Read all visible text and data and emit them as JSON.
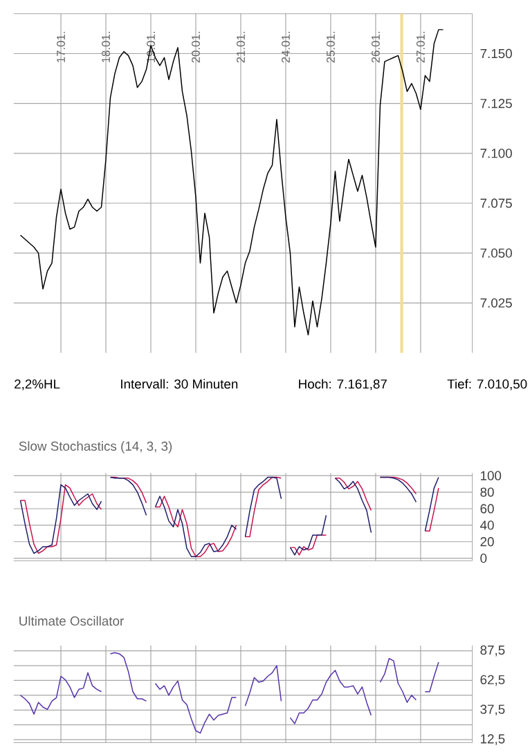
{
  "chart_data": [
    {
      "type": "line",
      "ylim": [
        7000,
        7170
      ],
      "grid": true,
      "categories": [
        null,
        null,
        null,
        null,
        null,
        null,
        null,
        null,
        null,
        null,
        "17.01.",
        null,
        null,
        null,
        null,
        null,
        null,
        null,
        null,
        null,
        "18.01.",
        null,
        null,
        null,
        null,
        null,
        null,
        null,
        null,
        null,
        "19.01.",
        null,
        null,
        null,
        null,
        null,
        null,
        null,
        null,
        null,
        "20.01.",
        null,
        null,
        null,
        null,
        null,
        null,
        null,
        null,
        null,
        "21.01.",
        null,
        null,
        null,
        null,
        null,
        null,
        null,
        null,
        null,
        "24.01.",
        null,
        null,
        null,
        null,
        null,
        null,
        null,
        null,
        null,
        "25.01.",
        null,
        null,
        null,
        null,
        null,
        null,
        null,
        null,
        null,
        "26.01.",
        null,
        null,
        null,
        null,
        null,
        null,
        null,
        null,
        null,
        "27.01.",
        null,
        null,
        null,
        null,
        null,
        null,
        null,
        null,
        null,
        null,
        null
      ],
      "yticks": [
        {
          "value": 7025,
          "label": "7.025"
        },
        {
          "value": 7050,
          "label": "7.050"
        },
        {
          "value": 7075,
          "label": "7.075"
        },
        {
          "value": 7100,
          "label": "7.100"
        },
        {
          "value": 7125,
          "label": "7.125"
        },
        {
          "value": 7150,
          "label": "7.150"
        }
      ],
      "annotations": [
        "2,2%HL",
        "Intervall: 30 Minuten",
        "Hoch: 7.161,87",
        "Tief: 7.010,50"
      ],
      "series": [
        {
          "color": "#000000",
          "values": [
            null,
            7059,
            7057,
            7055,
            7053,
            7050,
            7032,
            7041,
            7045,
            7068,
            7082,
            7070,
            7062,
            7063,
            7071,
            7073,
            7077,
            7073,
            7071,
            7073,
            7097,
            7128,
            7140,
            7148,
            7151,
            7149,
            7144,
            7133,
            7136,
            7142,
            7154,
            7148,
            7144,
            7148,
            7137,
            7146,
            7153,
            7131,
            7119,
            7101,
            7078,
            7045,
            7070,
            7058,
            7020,
            7030,
            7038,
            7041,
            7033,
            7025,
            7034,
            7045,
            7051,
            7063,
            7072,
            7082,
            7090,
            7094,
            7117,
            7091,
            7068,
            7050,
            7013,
            7033,
            7020,
            7009,
            7026,
            7013,
            7027,
            7045,
            7065,
            7091,
            7066,
            7083,
            7097,
            7089,
            7081,
            7089,
            7078,
            7065,
            7053,
            7124,
            7146,
            7147,
            7148,
            7149,
            7141,
            7131,
            7135,
            7130,
            7122,
            7139,
            7136,
            7155,
            7162,
            7162,
            null,
            null,
            null,
            null,
            null,
            null
          ]
        }
      ]
    },
    {
      "type": "line",
      "title": "Slow Stochastics (14, 3, 3)",
      "ylim": [
        -3,
        103
      ],
      "grid": true,
      "tick_labels": "y",
      "categories": [
        null,
        null,
        null,
        null,
        null,
        null,
        null,
        null,
        null,
        null,
        "17.01.",
        null,
        null,
        null,
        null,
        null,
        null,
        null,
        null,
        null,
        "18.01.",
        null,
        null,
        null,
        null,
        null,
        null,
        null,
        null,
        null,
        "19.01.",
        null,
        null,
        null,
        null,
        null,
        null,
        null,
        null,
        null,
        "20.01.",
        null,
        null,
        null,
        null,
        null,
        null,
        null,
        null,
        null,
        "21.01.",
        null,
        null,
        null,
        null,
        null,
        null,
        null,
        null,
        null,
        "24.01.",
        null,
        null,
        null,
        null,
        null,
        null,
        null,
        null,
        null,
        "25.01.",
        null,
        null,
        null,
        null,
        null,
        null,
        null,
        null,
        null,
        "26.01.",
        null,
        null,
        null,
        null,
        null,
        null,
        null,
        null,
        null,
        "27.01.",
        null,
        null,
        null,
        null,
        null,
        null,
        null,
        null,
        null,
        null,
        null
      ],
      "yticks": [
        0,
        20,
        40,
        60,
        80,
        100
      ],
      "series": [
        {
          "color": "#c8104a",
          "values": [
            null,
            70,
            70,
            42,
            17,
            6,
            9,
            14,
            14,
            16,
            48,
            89,
            85,
            74,
            64,
            70,
            74,
            78,
            66,
            59,
            null,
            98,
            98,
            97,
            97,
            97,
            94,
            89,
            80,
            67,
            null,
            62,
            62,
            75,
            62,
            45,
            38,
            59,
            42,
            12,
            2,
            2,
            7,
            16,
            18,
            8,
            9,
            16,
            26,
            40,
            null,
            26,
            26,
            57,
            83,
            89,
            93,
            98,
            98,
            97,
            null,
            13,
            13,
            4,
            14,
            10,
            12,
            28,
            28,
            28,
            null,
            97,
            97,
            92,
            84,
            87,
            93,
            84,
            70,
            58,
            null,
            98,
            98,
            98,
            98,
            97,
            95,
            91,
            85,
            78,
            null,
            33,
            33,
            58,
            85,
            null,
            null,
            null,
            null,
            null,
            null,
            null
          ]
        },
        {
          "color": "#1c1c6a",
          "values": [
            null,
            70,
            42,
            17,
            6,
            9,
            14,
            14,
            16,
            48,
            89,
            85,
            74,
            64,
            70,
            74,
            78,
            66,
            59,
            69,
            null,
            98,
            97,
            97,
            97,
            94,
            89,
            80,
            67,
            52,
            null,
            62,
            75,
            62,
            45,
            38,
            59,
            42,
            12,
            2,
            2,
            7,
            16,
            18,
            8,
            9,
            16,
            26,
            40,
            35,
            null,
            26,
            57,
            83,
            89,
            93,
            98,
            98,
            97,
            72,
            null,
            13,
            4,
            14,
            10,
            12,
            28,
            28,
            28,
            52,
            null,
            97,
            92,
            84,
            87,
            93,
            84,
            70,
            58,
            31,
            null,
            98,
            98,
            98,
            97,
            95,
            91,
            85,
            78,
            68,
            null,
            33,
            58,
            85,
            98,
            null,
            null,
            null,
            null,
            null,
            null,
            null
          ]
        }
      ]
    },
    {
      "type": "line",
      "title": "Ultimate Oscillator",
      "ylim": [
        10,
        92
      ],
      "grid": true,
      "tick_labels": "y",
      "categories": [
        null,
        null,
        null,
        null,
        null,
        null,
        null,
        null,
        null,
        null,
        "17.01.",
        null,
        null,
        null,
        null,
        null,
        null,
        null,
        null,
        null,
        "18.01.",
        null,
        null,
        null,
        null,
        null,
        null,
        null,
        null,
        null,
        "19.01.",
        null,
        null,
        null,
        null,
        null,
        null,
        null,
        null,
        null,
        "20.01.",
        null,
        null,
        null,
        null,
        null,
        null,
        null,
        null,
        null,
        "21.01.",
        null,
        null,
        null,
        null,
        null,
        null,
        null,
        null,
        null,
        "24.01.",
        null,
        null,
        null,
        null,
        null,
        null,
        null,
        null,
        null,
        "25.01.",
        null,
        null,
        null,
        null,
        null,
        null,
        null,
        null,
        null,
        "26.01.",
        null,
        null,
        null,
        null,
        null,
        null,
        null,
        null,
        null,
        "27.01.",
        null,
        null,
        null,
        null,
        null,
        null,
        null,
        null,
        null,
        null,
        null
      ],
      "yticks": [
        {
          "value": 12.5,
          "label": "12,5"
        },
        {
          "value": 25,
          "label": null
        },
        {
          "value": 37.5,
          "label": "37,5"
        },
        {
          "value": 50,
          "label": null
        },
        {
          "value": 62.5,
          "label": "62,5"
        },
        {
          "value": 75,
          "label": null
        },
        {
          "value": 87.5,
          "label": "87,5"
        }
      ],
      "series": [
        {
          "color": "#5533aa",
          "values": [
            null,
            50,
            47,
            43,
            34,
            44,
            40,
            38,
            45,
            48,
            66,
            63,
            57,
            48,
            55,
            56,
            69,
            58,
            55,
            53,
            null,
            85,
            86,
            85,
            82,
            70,
            53,
            47,
            47,
            45,
            null,
            60,
            55,
            58,
            50,
            57,
            62,
            46,
            42,
            30,
            20,
            18,
            27,
            34,
            29,
            33,
            34,
            35,
            48,
            48,
            null,
            41,
            52,
            65,
            61,
            62,
            66,
            69,
            75,
            45,
            null,
            31,
            26,
            35,
            35,
            39,
            46,
            46,
            51,
            61,
            67,
            71,
            62,
            57,
            57,
            58,
            51,
            57,
            44,
            33,
            null,
            61,
            68,
            81,
            79,
            60,
            53,
            44,
            50,
            46,
            null,
            53,
            53,
            66,
            78,
            null,
            null,
            null,
            null,
            null,
            null,
            null
          ]
        }
      ]
    }
  ]
}
